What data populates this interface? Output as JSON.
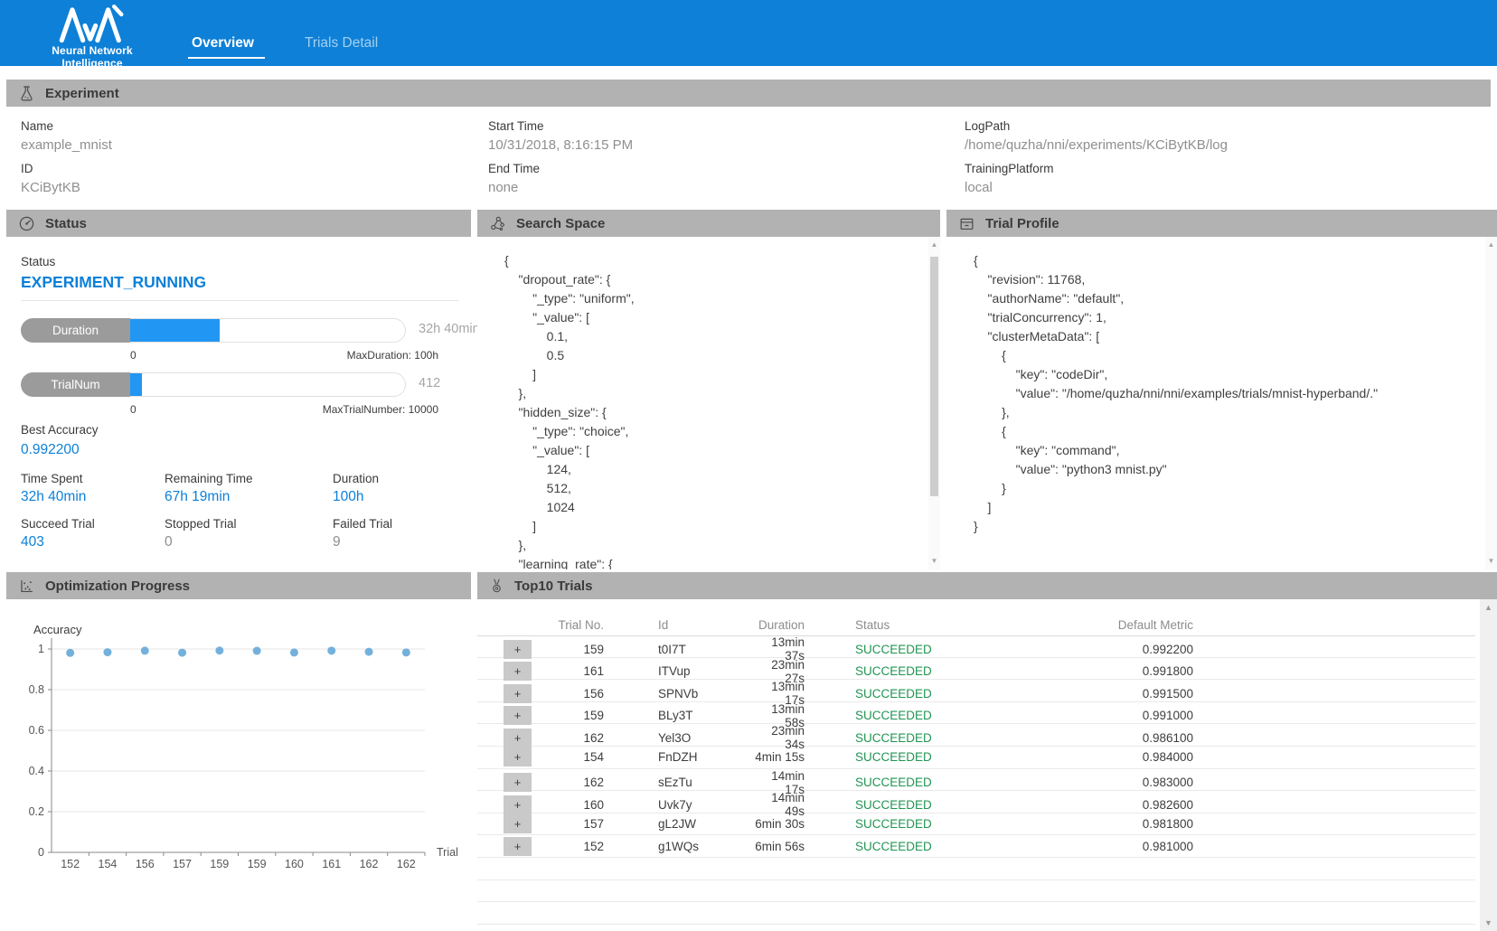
{
  "colors": {
    "header_blue": "#0e80d7",
    "accent_blue": "#0c80d8",
    "bar_fill": "#2196f3",
    "success_green": "#209552",
    "dot_blue": "#64a8d8",
    "section_bar_gray": "#b2b2b2"
  },
  "icons": {
    "scroll_up": "▲",
    "scroll_down": "▼",
    "expand": "+"
  },
  "header": {
    "brand": "Neural Network Intelligence",
    "tabs": [
      {
        "label": "Overview",
        "active": true
      },
      {
        "label": "Trials Detail",
        "active": false
      }
    ]
  },
  "experiment": {
    "title": "Experiment",
    "columns": [
      [
        {
          "label": "Name",
          "value": "example_mnist"
        },
        {
          "label": "ID",
          "value": "KCiBytKB"
        }
      ],
      [
        {
          "label": "Start Time",
          "value": "10/31/2018, 8:16:15 PM"
        },
        {
          "label": "End Time",
          "value": "none"
        }
      ],
      [
        {
          "label": "LogPath",
          "value": "/home/quzha/nni/experiments/KCiBytKB/log"
        },
        {
          "label": "TrainingPlatform",
          "value": "local"
        }
      ]
    ]
  },
  "status": {
    "title": "Status",
    "status_label": "Status",
    "status_value": "EXPERIMENT_RUNNING",
    "bars": [
      {
        "label": "Duration",
        "value": "32h 40min",
        "percent": 32.67,
        "min": "0",
        "max": "MaxDuration: 100h"
      },
      {
        "label": "TrialNum",
        "value": "412",
        "percent": 4.12,
        "min": "0",
        "max": "MaxTrialNumber: 10000"
      }
    ],
    "best_accuracy_label": "Best Accuracy",
    "best_accuracy": "0.992200",
    "stats": [
      {
        "label": "Time Spent",
        "value": "32h 40min",
        "color": "blue"
      },
      {
        "label": "Remaining Time",
        "value": "67h 19min",
        "color": "blue"
      },
      {
        "label": "Duration",
        "value": "100h",
        "color": "blue"
      },
      {
        "label": "Succeed Trial",
        "value": "403",
        "color": "blue"
      },
      {
        "label": "Stopped Trial",
        "value": "0",
        "color": "gray"
      },
      {
        "label": "Failed Trial",
        "value": "9",
        "color": "gray"
      }
    ]
  },
  "search_space": {
    "title": "Search Space",
    "code": "{\n    \"dropout_rate\": {\n        \"_type\": \"uniform\",\n        \"_value\": [\n            0.1,\n            0.5\n        ]\n    },\n    \"hidden_size\": {\n        \"_type\": \"choice\",\n        \"_value\": [\n            124,\n            512,\n            1024\n        ]\n    },\n    \"learning_rate\": {"
  },
  "trial_profile": {
    "title": "Trial Profile",
    "code": "{\n    \"revision\": 11768,\n    \"authorName\": \"default\",\n    \"trialConcurrency\": 1,\n    \"clusterMetaData\": [\n        {\n            \"key\": \"codeDir\",\n            \"value\": \"/home/quzha/nni/nni/examples/trials/mnist-hyperband/.\"\n        },\n        {\n            \"key\": \"command\",\n            \"value\": \"python3 mnist.py\"\n        }\n    ]\n}"
  },
  "optimization": {
    "title": "Optimization Progress",
    "chart_data": {
      "type": "scatter",
      "title": "",
      "xlabel": "Trial",
      "ylabel": "Accuracy",
      "ylim": [
        0,
        1
      ],
      "yticks": [
        0,
        0.2,
        0.4,
        0.6,
        0.8,
        1
      ],
      "grid": true,
      "x_tick_labels": [
        "152",
        "154",
        "156",
        "157",
        "159",
        "159",
        "160",
        "161",
        "162",
        "162"
      ],
      "points": [
        {
          "x": "152",
          "y": 0.981
        },
        {
          "x": "154",
          "y": 0.984
        },
        {
          "x": "156",
          "y": 0.9915
        },
        {
          "x": "157",
          "y": 0.9818
        },
        {
          "x": "159",
          "y": 0.9922
        },
        {
          "x": "159",
          "y": 0.991
        },
        {
          "x": "160",
          "y": 0.9826
        },
        {
          "x": "161",
          "y": 0.9918
        },
        {
          "x": "162",
          "y": 0.9861
        },
        {
          "x": "162",
          "y": 0.983
        }
      ]
    }
  },
  "top_trials": {
    "title": "Top10 Trials",
    "columns": [
      "Trial No.",
      "Id",
      "Duration",
      "Status",
      "Default Metric"
    ],
    "rows": [
      {
        "trial_no": "159",
        "id": "t0I7T",
        "duration": "13min 37s",
        "status": "SUCCEEDED",
        "metric": "0.992200"
      },
      {
        "trial_no": "161",
        "id": "ITVup",
        "duration": "23min 27s",
        "status": "SUCCEEDED",
        "metric": "0.991800"
      },
      {
        "trial_no": "156",
        "id": "SPNVb",
        "duration": "13min 17s",
        "status": "SUCCEEDED",
        "metric": "0.991500"
      },
      {
        "trial_no": "159",
        "id": "BLy3T",
        "duration": "13min 58s",
        "status": "SUCCEEDED",
        "metric": "0.991000"
      },
      {
        "trial_no": "162",
        "id": "Yel3O",
        "duration": "23min 34s",
        "status": "SUCCEEDED",
        "metric": "0.986100"
      },
      {
        "trial_no": "154",
        "id": "FnDZH",
        "duration": "4min 15s",
        "status": "SUCCEEDED",
        "metric": "0.984000"
      },
      {
        "trial_no": "162",
        "id": "sEzTu",
        "duration": "14min 17s",
        "status": "SUCCEEDED",
        "metric": "0.983000"
      },
      {
        "trial_no": "160",
        "id": "Uvk7y",
        "duration": "14min 49s",
        "status": "SUCCEEDED",
        "metric": "0.982600"
      },
      {
        "trial_no": "157",
        "id": "gL2JW",
        "duration": "6min 30s",
        "status": "SUCCEEDED",
        "metric": "0.981800"
      },
      {
        "trial_no": "152",
        "id": "g1WQs",
        "duration": "6min 56s",
        "status": "SUCCEEDED",
        "metric": "0.981000"
      }
    ]
  }
}
